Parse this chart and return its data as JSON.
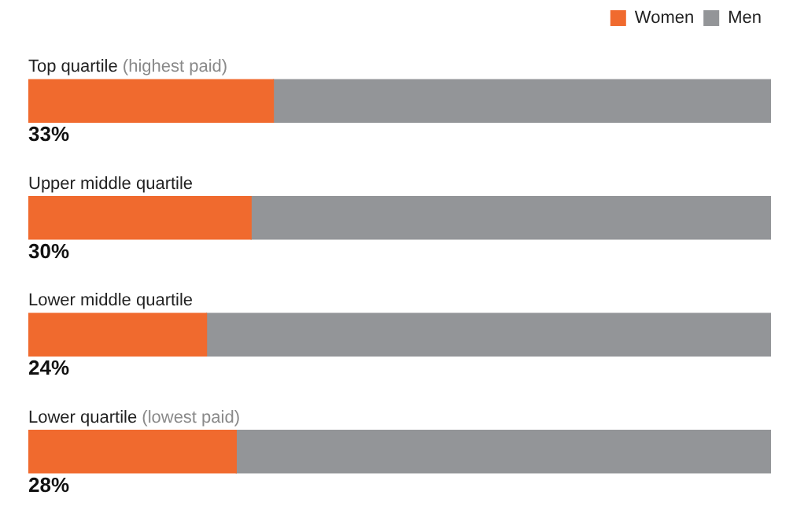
{
  "chart_data": {
    "type": "bar",
    "orientation": "horizontal",
    "stacked": true,
    "legend": "top right",
    "tick_labels": false,
    "grid": false,
    "categories": [
      "Top quartile (highest paid)",
      "Upper middle quartile",
      "Lower middle quartile",
      "Lower quartile (lowest paid)"
    ],
    "series": [
      {
        "name": "Women",
        "color": "#f06a2e",
        "values": [
          33,
          30,
          24,
          28
        ],
        "value_labels": [
          "33%",
          "30%",
          "24%",
          "28%"
        ]
      },
      {
        "name": "Men",
        "color": "#939598",
        "values": [
          67,
          70,
          76,
          72
        ]
      }
    ]
  }
}
